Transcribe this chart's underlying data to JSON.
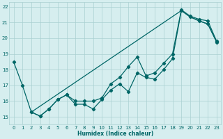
{
  "xlabel": "Humidex (Indice chaleur)",
  "ylabel": "",
  "xlim": [
    -0.5,
    23.5
  ],
  "ylim": [
    14.5,
    22.3
  ],
  "yticks": [
    15,
    16,
    17,
    18,
    19,
    20,
    21,
    22
  ],
  "xticks": [
    0,
    1,
    2,
    3,
    4,
    5,
    6,
    7,
    8,
    9,
    10,
    11,
    12,
    13,
    14,
    15,
    16,
    17,
    18,
    19,
    20,
    21,
    22,
    23
  ],
  "bg_color": "#d6eeef",
  "grid_color": "#aad0d2",
  "line_color": "#006666",
  "line1_x": [
    0,
    1,
    2,
    3,
    4,
    5,
    6,
    7,
    8,
    9,
    10,
    11,
    12,
    13,
    14,
    15,
    16,
    17,
    18,
    19,
    20,
    21,
    22,
    23
  ],
  "line1_y": [
    18.5,
    17.0,
    15.3,
    15.05,
    15.5,
    16.1,
    16.4,
    15.8,
    15.8,
    15.5,
    16.1,
    16.7,
    17.1,
    16.6,
    17.8,
    17.5,
    17.4,
    18.0,
    18.7,
    21.75,
    21.35,
    21.1,
    20.9,
    19.75
  ],
  "line2_x": [
    2,
    3,
    4,
    5,
    6,
    7,
    8,
    9,
    10,
    11,
    12,
    13,
    14,
    15,
    16,
    17,
    18,
    19,
    20,
    21,
    22,
    23
  ],
  "line2_y": [
    15.3,
    15.05,
    15.5,
    16.1,
    16.4,
    16.0,
    16.0,
    16.0,
    16.2,
    17.1,
    17.5,
    18.2,
    18.8,
    17.6,
    17.8,
    18.4,
    19.0,
    21.8,
    21.4,
    21.2,
    21.1,
    19.8
  ],
  "line3_x": [
    2,
    19,
    20,
    21,
    22,
    23
  ],
  "line3_y": [
    15.3,
    21.75,
    21.35,
    21.1,
    20.9,
    19.75
  ]
}
